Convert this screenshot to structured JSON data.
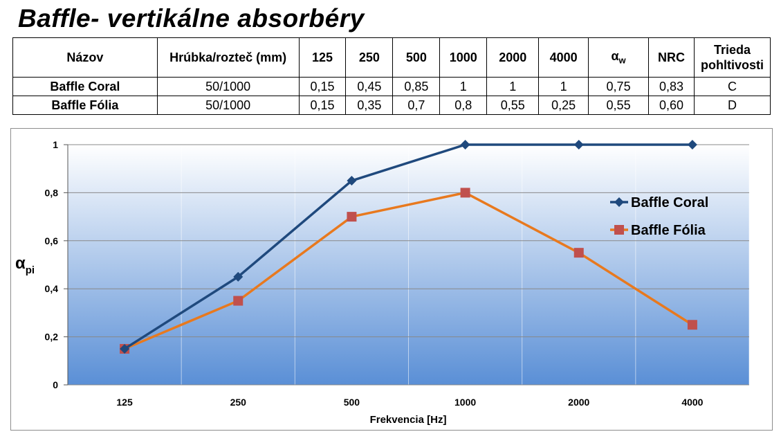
{
  "page": {
    "title": "Baffle-  vertikálne absorbéry"
  },
  "table": {
    "headers": {
      "name": "Názov",
      "thickness": "Hrúbka/rozteč (mm)",
      "f125": "125",
      "f250": "250",
      "f500": "500",
      "f1000": "1000",
      "f2000": "2000",
      "f4000": "4000",
      "alpha_w_main": "α",
      "alpha_w_sub": "w",
      "nrc": "NRC",
      "class": "Trieda pohltivosti"
    },
    "rows": [
      {
        "name": "Baffle Coral",
        "thickness": "50/1000",
        "f125": "0,15",
        "f250": "0,45",
        "f500": "0,85",
        "f1000": "1",
        "f2000": "1",
        "f4000": "1",
        "alpha_w": "0,75",
        "nrc": "0,83",
        "class": "C"
      },
      {
        "name": "Baffle Fólia",
        "thickness": "50/1000",
        "f125": "0,15",
        "f250": "0,35",
        "f500": "0,7",
        "f1000": "0,8",
        "f2000": "0,55",
        "f4000": "0,25",
        "alpha_w": "0,55",
        "nrc": "0,60",
        "class": "D"
      }
    ]
  },
  "chart_data": {
    "type": "line",
    "title": "",
    "xlabel": "Frekvencia [Hz]",
    "ylabel_main": "α",
    "ylabel_sub": "pi",
    "categories": [
      "125",
      "250",
      "500",
      "1000",
      "2000",
      "4000"
    ],
    "ylim": [
      0,
      1
    ],
    "yticks": [
      0,
      0.2,
      0.4,
      0.6,
      0.8,
      1
    ],
    "ytick_labels": [
      "0",
      "0,2",
      "0,4",
      "0,6",
      "0,8",
      "1"
    ],
    "grid": "horizontal",
    "legend_position": "right",
    "background": "gradient white to blue",
    "series": [
      {
        "name": "Baffle Coral",
        "values": [
          0.15,
          0.45,
          0.85,
          1,
          1,
          1
        ],
        "color": "#1f497d",
        "marker": "diamond"
      },
      {
        "name": "Baffle Fólia",
        "values": [
          0.15,
          0.35,
          0.7,
          0.8,
          0.55,
          0.25
        ],
        "color": "#e8791e",
        "marker_color": "#c0504d",
        "marker": "square"
      }
    ]
  }
}
